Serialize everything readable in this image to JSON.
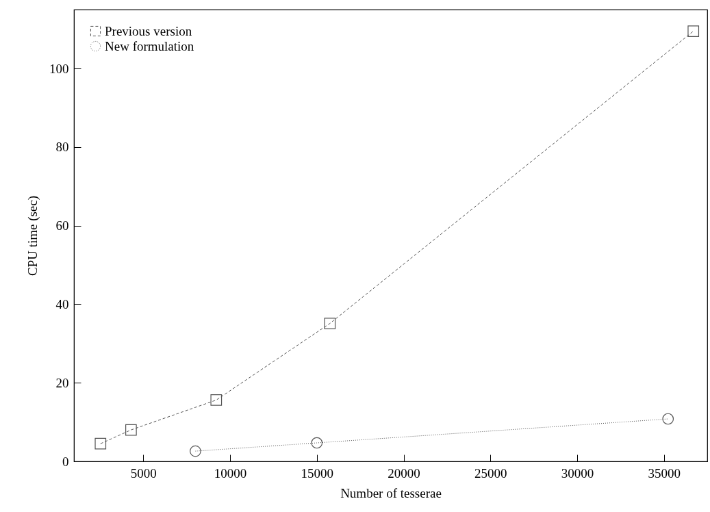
{
  "chart_data": {
    "type": "line",
    "xlabel": "Number of tesserae",
    "ylabel": "CPU time (sec)",
    "xlim": [
      1000,
      37500
    ],
    "xticks": [
      5000,
      10000,
      15000,
      20000,
      25000,
      30000,
      35000
    ],
    "ylim": [
      0,
      115
    ],
    "yticks": [
      0,
      20,
      40,
      60,
      80,
      100
    ],
    "grid": false,
    "legend": "top left",
    "series": [
      {
        "name": "Previous version",
        "color": "#555555",
        "marker": "square",
        "line_style": "dashed",
        "x": [
          2530,
          4290,
          9200,
          15750,
          36700
        ],
        "values": [
          4.5,
          8.0,
          15.6,
          35.1,
          109.5
        ]
      },
      {
        "name": "New formulation",
        "color": "#555555",
        "marker": "circle",
        "line_style": "dotted",
        "x": [
          8000,
          15000,
          35240
        ],
        "values": [
          2.6,
          4.7,
          10.8
        ]
      }
    ]
  }
}
